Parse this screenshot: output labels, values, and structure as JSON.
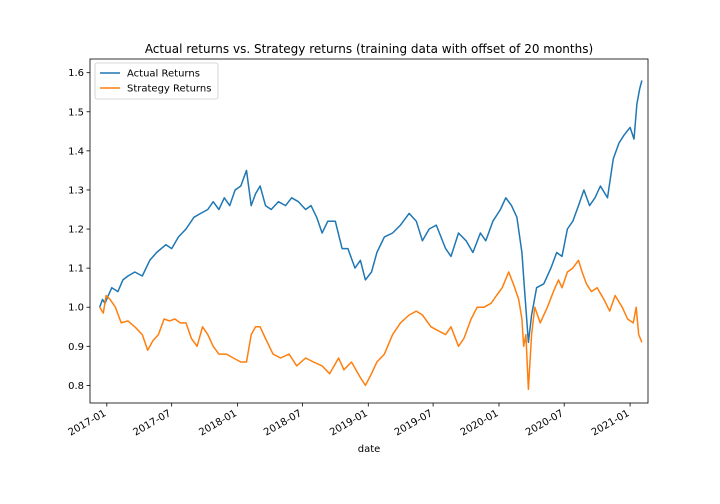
{
  "chart_data": {
    "type": "line",
    "title": "Actual returns vs. Strategy returns (training data with offset of 20 months)",
    "xlabel": "date",
    "ylabel": "",
    "x_range": [
      "2016-11-15",
      "2021-02-20"
    ],
    "ylim": [
      0.755,
      1.635
    ],
    "grid": false,
    "legend_position": "top-left",
    "x_ticks": [
      "2017-01",
      "2017-07",
      "2018-01",
      "2018-07",
      "2019-01",
      "2019-07",
      "2020-01",
      "2020-07",
      "2021-01"
    ],
    "y_ticks": [
      "0.8",
      "0.9",
      "1.0",
      "1.1",
      "1.2",
      "1.3",
      "1.4",
      "1.5",
      "1.6"
    ],
    "series": [
      {
        "name": "Actual Returns",
        "color": "#1f77b4",
        "points": [
          [
            "2016-12-12",
            1.0
          ],
          [
            "2016-12-20",
            1.02
          ],
          [
            "2016-12-27",
            1.01
          ],
          [
            "2017-01-05",
            1.03
          ],
          [
            "2017-01-15",
            1.05
          ],
          [
            "2017-02-01",
            1.04
          ],
          [
            "2017-02-15",
            1.07
          ],
          [
            "2017-03-01",
            1.08
          ],
          [
            "2017-03-20",
            1.09
          ],
          [
            "2017-04-10",
            1.08
          ],
          [
            "2017-05-01",
            1.12
          ],
          [
            "2017-05-20",
            1.14
          ],
          [
            "2017-06-15",
            1.16
          ],
          [
            "2017-07-01",
            1.15
          ],
          [
            "2017-07-20",
            1.18
          ],
          [
            "2017-08-10",
            1.2
          ],
          [
            "2017-09-01",
            1.23
          ],
          [
            "2017-09-20",
            1.24
          ],
          [
            "2017-10-10",
            1.25
          ],
          [
            "2017-10-25",
            1.27
          ],
          [
            "2017-11-10",
            1.25
          ],
          [
            "2017-11-25",
            1.28
          ],
          [
            "2017-12-10",
            1.26
          ],
          [
            "2017-12-25",
            1.3
          ],
          [
            "2018-01-10",
            1.31
          ],
          [
            "2018-01-26",
            1.35
          ],
          [
            "2018-02-08",
            1.26
          ],
          [
            "2018-02-20",
            1.29
          ],
          [
            "2018-03-05",
            1.31
          ],
          [
            "2018-03-20",
            1.26
          ],
          [
            "2018-04-05",
            1.25
          ],
          [
            "2018-04-25",
            1.27
          ],
          [
            "2018-05-15",
            1.26
          ],
          [
            "2018-06-01",
            1.28
          ],
          [
            "2018-06-20",
            1.27
          ],
          [
            "2018-07-10",
            1.25
          ],
          [
            "2018-07-25",
            1.26
          ],
          [
            "2018-08-10",
            1.23
          ],
          [
            "2018-08-25",
            1.19
          ],
          [
            "2018-09-10",
            1.22
          ],
          [
            "2018-10-01",
            1.22
          ],
          [
            "2018-10-20",
            1.15
          ],
          [
            "2018-11-05",
            1.15
          ],
          [
            "2018-11-25",
            1.1
          ],
          [
            "2018-12-10",
            1.12
          ],
          [
            "2018-12-24",
            1.07
          ],
          [
            "2019-01-10",
            1.09
          ],
          [
            "2019-01-25",
            1.14
          ],
          [
            "2019-02-15",
            1.18
          ],
          [
            "2019-03-10",
            1.19
          ],
          [
            "2019-04-01",
            1.21
          ],
          [
            "2019-04-25",
            1.24
          ],
          [
            "2019-05-15",
            1.22
          ],
          [
            "2019-06-01",
            1.17
          ],
          [
            "2019-06-20",
            1.2
          ],
          [
            "2019-07-10",
            1.21
          ],
          [
            "2019-08-05",
            1.15
          ],
          [
            "2019-08-20",
            1.13
          ],
          [
            "2019-09-10",
            1.19
          ],
          [
            "2019-10-01",
            1.17
          ],
          [
            "2019-10-20",
            1.14
          ],
          [
            "2019-11-10",
            1.19
          ],
          [
            "2019-11-25",
            1.17
          ],
          [
            "2019-12-15",
            1.22
          ],
          [
            "2020-01-05",
            1.25
          ],
          [
            "2020-01-20",
            1.28
          ],
          [
            "2020-02-05",
            1.26
          ],
          [
            "2020-02-20",
            1.23
          ],
          [
            "2020-03-05",
            1.14
          ],
          [
            "2020-03-12",
            1.05
          ],
          [
            "2020-03-23",
            0.91
          ],
          [
            "2020-04-01",
            0.98
          ],
          [
            "2020-04-15",
            1.05
          ],
          [
            "2020-05-05",
            1.06
          ],
          [
            "2020-05-25",
            1.1
          ],
          [
            "2020-06-10",
            1.14
          ],
          [
            "2020-06-25",
            1.13
          ],
          [
            "2020-07-10",
            1.2
          ],
          [
            "2020-07-25",
            1.22
          ],
          [
            "2020-08-10",
            1.26
          ],
          [
            "2020-08-25",
            1.3
          ],
          [
            "2020-09-10",
            1.26
          ],
          [
            "2020-09-25",
            1.28
          ],
          [
            "2020-10-10",
            1.31
          ],
          [
            "2020-10-30",
            1.28
          ],
          [
            "2020-11-15",
            1.38
          ],
          [
            "2020-12-01",
            1.42
          ],
          [
            "2020-12-15",
            1.44
          ],
          [
            "2021-01-01",
            1.46
          ],
          [
            "2021-01-12",
            1.43
          ],
          [
            "2021-01-20",
            1.52
          ],
          [
            "2021-01-28",
            1.56
          ],
          [
            "2021-02-03",
            1.58
          ]
        ]
      },
      {
        "name": "Strategy Returns",
        "color": "#ff7f0e",
        "points": [
          [
            "2016-12-12",
            1.0
          ],
          [
            "2016-12-22",
            0.985
          ],
          [
            "2016-12-30",
            1.03
          ],
          [
            "2017-01-10",
            1.02
          ],
          [
            "2017-01-25",
            1.0
          ],
          [
            "2017-02-10",
            0.96
          ],
          [
            "2017-03-01",
            0.965
          ],
          [
            "2017-03-20",
            0.95
          ],
          [
            "2017-04-10",
            0.93
          ],
          [
            "2017-04-25",
            0.89
          ],
          [
            "2017-05-10",
            0.915
          ],
          [
            "2017-05-25",
            0.93
          ],
          [
            "2017-06-10",
            0.97
          ],
          [
            "2017-06-25",
            0.965
          ],
          [
            "2017-07-10",
            0.97
          ],
          [
            "2017-07-25",
            0.96
          ],
          [
            "2017-08-10",
            0.96
          ],
          [
            "2017-08-25",
            0.92
          ],
          [
            "2017-09-10",
            0.9
          ],
          [
            "2017-09-25",
            0.95
          ],
          [
            "2017-10-10",
            0.93
          ],
          [
            "2017-10-25",
            0.9
          ],
          [
            "2017-11-10",
            0.88
          ],
          [
            "2017-12-01",
            0.88
          ],
          [
            "2017-12-20",
            0.87
          ],
          [
            "2018-01-10",
            0.86
          ],
          [
            "2018-01-26",
            0.86
          ],
          [
            "2018-02-08",
            0.93
          ],
          [
            "2018-02-20",
            0.95
          ],
          [
            "2018-03-05",
            0.95
          ],
          [
            "2018-03-20",
            0.92
          ],
          [
            "2018-04-10",
            0.88
          ],
          [
            "2018-05-01",
            0.87
          ],
          [
            "2018-05-25",
            0.88
          ],
          [
            "2018-06-15",
            0.85
          ],
          [
            "2018-07-10",
            0.87
          ],
          [
            "2018-08-01",
            0.86
          ],
          [
            "2018-08-25",
            0.85
          ],
          [
            "2018-09-15",
            0.83
          ],
          [
            "2018-10-10",
            0.87
          ],
          [
            "2018-10-25",
            0.84
          ],
          [
            "2018-11-15",
            0.86
          ],
          [
            "2018-12-10",
            0.82
          ],
          [
            "2018-12-24",
            0.8
          ],
          [
            "2019-01-10",
            0.83
          ],
          [
            "2019-01-25",
            0.86
          ],
          [
            "2019-02-15",
            0.88
          ],
          [
            "2019-03-10",
            0.93
          ],
          [
            "2019-04-01",
            0.96
          ],
          [
            "2019-04-25",
            0.98
          ],
          [
            "2019-05-15",
            0.99
          ],
          [
            "2019-06-01",
            0.98
          ],
          [
            "2019-06-25",
            0.95
          ],
          [
            "2019-07-15",
            0.94
          ],
          [
            "2019-08-05",
            0.93
          ],
          [
            "2019-08-20",
            0.95
          ],
          [
            "2019-09-10",
            0.9
          ],
          [
            "2019-09-25",
            0.92
          ],
          [
            "2019-10-15",
            0.97
          ],
          [
            "2019-11-01",
            1.0
          ],
          [
            "2019-11-20",
            1.0
          ],
          [
            "2019-12-10",
            1.01
          ],
          [
            "2019-12-25",
            1.03
          ],
          [
            "2020-01-10",
            1.05
          ],
          [
            "2020-01-28",
            1.09
          ],
          [
            "2020-02-10",
            1.06
          ],
          [
            "2020-02-25",
            1.02
          ],
          [
            "2020-03-05",
            0.97
          ],
          [
            "2020-03-10",
            0.9
          ],
          [
            "2020-03-16",
            0.93
          ],
          [
            "2020-03-23",
            0.79
          ],
          [
            "2020-04-01",
            0.93
          ],
          [
            "2020-04-10",
            1.0
          ],
          [
            "2020-04-25",
            0.96
          ],
          [
            "2020-05-15",
            1.0
          ],
          [
            "2020-06-01",
            1.04
          ],
          [
            "2020-06-15",
            1.07
          ],
          [
            "2020-06-25",
            1.05
          ],
          [
            "2020-07-10",
            1.09
          ],
          [
            "2020-07-25",
            1.1
          ],
          [
            "2020-08-10",
            1.12
          ],
          [
            "2020-08-20",
            1.09
          ],
          [
            "2020-09-01",
            1.06
          ],
          [
            "2020-09-15",
            1.04
          ],
          [
            "2020-10-01",
            1.05
          ],
          [
            "2020-10-20",
            1.02
          ],
          [
            "2020-11-05",
            0.99
          ],
          [
            "2020-11-20",
            1.03
          ],
          [
            "2020-12-10",
            1.0
          ],
          [
            "2020-12-25",
            0.97
          ],
          [
            "2021-01-10",
            0.96
          ],
          [
            "2021-01-18",
            1.0
          ],
          [
            "2021-01-25",
            0.93
          ],
          [
            "2021-02-03",
            0.91
          ]
        ]
      }
    ]
  }
}
